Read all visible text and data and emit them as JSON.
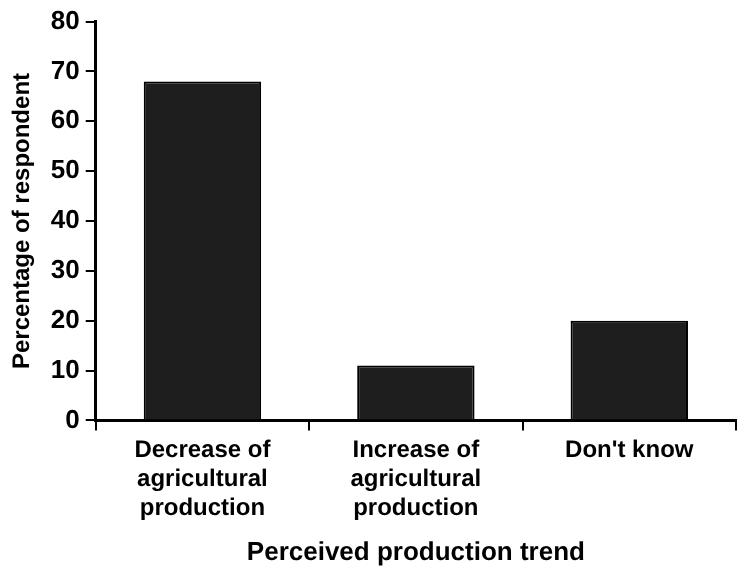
{
  "chart_data": {
    "type": "bar",
    "xlabel": "Perceived production trend",
    "ylabel": "Percentage of respondent",
    "categories": [
      "Decrease of agricultural production",
      "Increase of agricultural production",
      "Don't know"
    ],
    "values": [
      68,
      11,
      20
    ],
    "color": "#1e1e1e",
    "ylim": [
      0,
      80
    ],
    "yticks": [
      0,
      10,
      20,
      30,
      40,
      50,
      60,
      70,
      80
    ],
    "grid": false,
    "legend": false
  }
}
